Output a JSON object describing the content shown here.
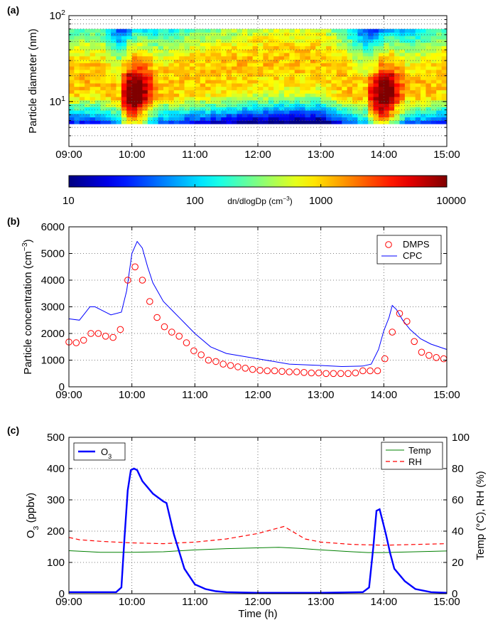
{
  "chart_data": [
    {
      "panel": "(a)",
      "type": "heatmap",
      "ylabel": "Particle diameter (nm)",
      "yscale": "log",
      "ylim": [
        3,
        100
      ],
      "y_decade_labels": [
        {
          "base": "10",
          "exp": "1",
          "value": 10
        },
        {
          "base": "10",
          "exp": "2",
          "value": 100
        }
      ],
      "x_ticks": [
        "09:00",
        "10:00",
        "11:00",
        "12:00",
        "13:00",
        "14:00",
        "15:00"
      ],
      "xlim": [
        "09:00",
        "15:00"
      ],
      "diameter_range": [
        5.5,
        70
      ],
      "colorbar": {
        "label": "dn/dlogDp (cm",
        "label_exp": "−3",
        "label_end": ")",
        "scale": "log",
        "ticks": [
          "10",
          "100",
          "1000",
          "10000"
        ],
        "range": [
          10,
          10000
        ]
      },
      "mode_evolution": [
        {
          "time": "09:00",
          "mode_diameter_nm": 18
        },
        {
          "time": "09:30",
          "mode_diameter_nm": 20
        },
        {
          "time": "09:50",
          "mode_diameter_nm": 10
        },
        {
          "time": "10:05",
          "mode_diameter_nm": 12
        },
        {
          "time": "10:30",
          "mode_diameter_nm": 16
        },
        {
          "time": "11:00",
          "mode_diameter_nm": 20
        },
        {
          "time": "12:00",
          "mode_diameter_nm": 28
        },
        {
          "time": "13:00",
          "mode_diameter_nm": 30
        },
        {
          "time": "13:50",
          "mode_diameter_nm": 9
        },
        {
          "time": "14:10",
          "mode_diameter_nm": 12
        },
        {
          "time": "15:00",
          "mode_diameter_nm": 20
        }
      ]
    },
    {
      "panel": "(b)",
      "type": "line",
      "ylabel": "Particle concentration (cm",
      "ylabel_exp": "−3",
      "ylabel_end": ")",
      "ylim": [
        0,
        6000
      ],
      "y_ticks": [
        "0",
        "1000",
        "2000",
        "3000",
        "4000",
        "5000",
        "6000"
      ],
      "x_ticks": [
        "09:00",
        "10:00",
        "11:00",
        "12:00",
        "13:00",
        "14:00",
        "15:00"
      ],
      "xlim": [
        "09:00",
        "15:00"
      ],
      "legend_location": "top-right",
      "series": [
        {
          "name": "DMPS",
          "style": "markers",
          "color": "#ff0000",
          "x": [
            "09:00",
            "09:07",
            "09:14",
            "09:21",
            "09:28",
            "09:35",
            "09:42",
            "09:49",
            "09:56",
            "10:03",
            "10:10",
            "10:17",
            "10:24",
            "10:31",
            "10:38",
            "10:45",
            "10:52",
            "10:59",
            "11:06",
            "11:13",
            "11:20",
            "11:27",
            "11:34",
            "11:41",
            "11:48",
            "11:55",
            "12:02",
            "12:09",
            "12:16",
            "12:23",
            "12:30",
            "12:37",
            "12:44",
            "12:51",
            "12:58",
            "13:05",
            "13:12",
            "13:19",
            "13:26",
            "13:33",
            "13:40",
            "13:47",
            "13:54",
            "14:01",
            "14:08",
            "14:15",
            "14:22",
            "14:29",
            "14:36",
            "14:43",
            "14:50",
            "14:57"
          ],
          "values": [
            1680,
            1650,
            1750,
            2000,
            2000,
            1900,
            1850,
            2150,
            4000,
            4500,
            4000,
            3200,
            2600,
            2250,
            2050,
            1900,
            1650,
            1350,
            1200,
            1000,
            950,
            850,
            800,
            750,
            700,
            650,
            620,
            600,
            600,
            580,
            560,
            560,
            540,
            520,
            520,
            500,
            500,
            500,
            500,
            520,
            600,
            600,
            600,
            1050,
            2050,
            2750,
            2450,
            1700,
            1300,
            1180,
            1100,
            1050
          ]
        },
        {
          "name": "CPC",
          "style": "line",
          "color": "#0000ff",
          "x": [
            "09:00",
            "09:10",
            "09:15",
            "09:20",
            "09:25",
            "09:30",
            "09:40",
            "09:50",
            "09:55",
            "10:00",
            "10:05",
            "10:10",
            "10:15",
            "10:20",
            "10:30",
            "10:40",
            "10:50",
            "11:00",
            "11:15",
            "11:30",
            "12:00",
            "12:30",
            "13:00",
            "13:20",
            "13:40",
            "13:48",
            "13:55",
            "14:00",
            "14:05",
            "14:08",
            "14:12",
            "14:18",
            "14:25",
            "14:35",
            "14:45",
            "15:00"
          ],
          "values": [
            2550,
            2500,
            2750,
            3000,
            3000,
            2900,
            2700,
            2800,
            3600,
            5000,
            5450,
            5200,
            4500,
            3900,
            3200,
            2800,
            2400,
            2000,
            1500,
            1250,
            1050,
            850,
            800,
            760,
            780,
            850,
            1400,
            2100,
            2600,
            3050,
            2900,
            2500,
            2150,
            1800,
            1600,
            1400
          ]
        }
      ]
    },
    {
      "panel": "(c)",
      "type": "line",
      "xlabel": "Time (h)",
      "ylabel_left": "O",
      "ylabel_left_sub": "3",
      "ylabel_left_end": " (ppbv)",
      "ylabel_right": "Temp (°C), RH (%)",
      "ylim_left": [
        0,
        500
      ],
      "ylim_right": [
        0,
        100
      ],
      "y_ticks_left": [
        "0",
        "100",
        "200",
        "300",
        "400",
        "500"
      ],
      "y_ticks_right": [
        "0",
        "20",
        "40",
        "60",
        "80",
        "100"
      ],
      "x_ticks": [
        "09:00",
        "10:00",
        "11:00",
        "12:00",
        "13:00",
        "14:00",
        "15:00"
      ],
      "xlim": [
        "09:00",
        "15:00"
      ],
      "legend_left": {
        "text": "O",
        "sub": "3",
        "location": "top-left"
      },
      "legend_right_location": "top-right",
      "series": [
        {
          "name": "O3",
          "axis": "left",
          "color": "#0000ff",
          "x": [
            "09:00",
            "09:30",
            "09:45",
            "09:50",
            "09:53",
            "09:56",
            "09:59",
            "10:02",
            "10:05",
            "10:10",
            "10:20",
            "10:30",
            "10:33",
            "10:40",
            "10:50",
            "11:00",
            "11:10",
            "11:20",
            "11:30",
            "12:00",
            "13:00",
            "13:40",
            "13:46",
            "13:50",
            "13:53",
            "13:56",
            "13:59",
            "14:02",
            "14:06",
            "14:10",
            "14:20",
            "14:30",
            "14:45",
            "15:00"
          ],
          "values": [
            5,
            5,
            5,
            20,
            180,
            330,
            395,
            400,
            395,
            360,
            320,
            295,
            290,
            190,
            80,
            30,
            15,
            8,
            5,
            3,
            3,
            5,
            20,
            150,
            265,
            270,
            230,
            190,
            130,
            80,
            40,
            15,
            5,
            3
          ]
        },
        {
          "name": "Temp",
          "axis": "right",
          "color": "#008000",
          "x": [
            "09:00",
            "09:30",
            "10:00",
            "10:30",
            "11:00",
            "11:30",
            "12:00",
            "12:20",
            "12:40",
            "13:00",
            "13:30",
            "13:45",
            "14:00",
            "14:30",
            "15:00"
          ],
          "values": [
            27.5,
            26.5,
            26.5,
            26.8,
            28,
            28.8,
            29.3,
            29.7,
            29.0,
            28.0,
            26.8,
            26.3,
            26.3,
            26.8,
            27.3
          ]
        },
        {
          "name": "RH",
          "axis": "right",
          "color": "#ff0000",
          "style": "dashed",
          "x": [
            "09:00",
            "09:10",
            "09:30",
            "10:00",
            "10:30",
            "11:00",
            "11:30",
            "12:00",
            "12:25",
            "12:45",
            "13:00",
            "13:30",
            "14:00",
            "14:30",
            "15:00"
          ],
          "values": [
            36,
            34.5,
            33.5,
            32.5,
            32,
            33,
            35,
            38.5,
            43,
            35,
            33,
            31.5,
            31,
            31.5,
            32
          ]
        }
      ]
    }
  ]
}
